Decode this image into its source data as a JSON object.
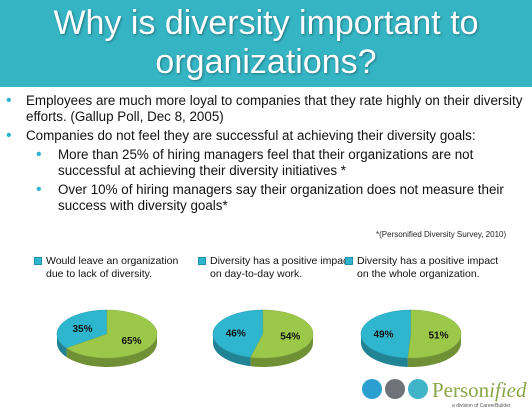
{
  "title": {
    "line1": "Why is diversity important to",
    "line2": "organizations?"
  },
  "bullets": [
    {
      "level": 1,
      "text": "Employees are much more loyal to companies that they rate highly on their diversity efforts. (Gallup Poll, Dec 8, 2005)"
    },
    {
      "level": 1,
      "text": "Companies do not feel they are successful at achieving their diversity goals:"
    },
    {
      "level": 2,
      "text": "More than 25% of hiring managers feel that their organizations are not successful at achieving their diversity initiatives *"
    },
    {
      "level": 2,
      "text": "Over 10% of hiring managers say their organization does not measure their success with diversity goals*"
    }
  ],
  "source": "*(Personified Diversity Survey, 2010)",
  "colors": {
    "title_bg": "#35b4c3",
    "blue": "#2fb6cf",
    "green": "#9cc84a",
    "logo_green": "#8aa64a"
  },
  "chart_data": [
    {
      "type": "pie",
      "legend": "Would leave an organization due to lack of diversity.",
      "slices": [
        {
          "value": 35,
          "label": "35%",
          "color": "#2fb6cf"
        },
        {
          "value": 65,
          "label": "65%",
          "color": "#9cc84a"
        }
      ]
    },
    {
      "type": "pie",
      "legend": "Diversity has a positive impact on day-to-day work.",
      "slices": [
        {
          "value": 46,
          "label": "46%",
          "color": "#2fb6cf"
        },
        {
          "value": 54,
          "label": "54%",
          "color": "#9cc84a"
        }
      ]
    },
    {
      "type": "pie",
      "legend": "Diversity has a positive impact on the whole organization.",
      "slices": [
        {
          "value": 49,
          "label": "49%",
          "color": "#2fb6cf"
        },
        {
          "value": 51,
          "label": "51%",
          "color": "#9cc84a"
        }
      ]
    }
  ],
  "logo": {
    "name_main": "Person",
    "name_italic": "ified",
    "tagline": "a division of CareerBuilder",
    "dot_colors": [
      "#2a9fd0",
      "#6f7378",
      "#3fb3c8"
    ]
  }
}
